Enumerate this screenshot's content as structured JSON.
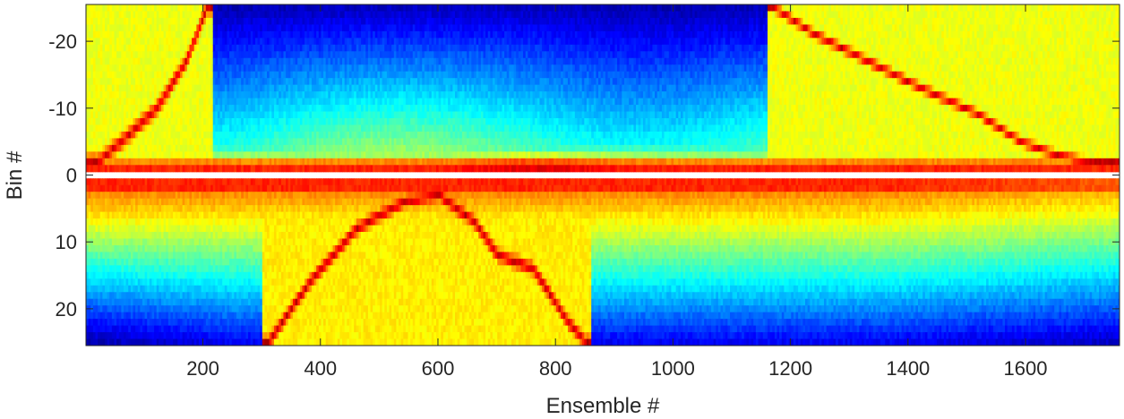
{
  "chart_data": {
    "type": "heatmap",
    "title": "",
    "xlabel": "Ensemble #",
    "ylabel": "Bin #",
    "xlim": [
      1,
      1760
    ],
    "ylim": [
      -25.5,
      25.5
    ],
    "y_direction": "reversed",
    "colormap": "jet",
    "grid": false,
    "x_ticks": [
      {
        "value": 200,
        "label": "200"
      },
      {
        "value": 400,
        "label": "400"
      },
      {
        "value": 600,
        "label": "600"
      },
      {
        "value": 800,
        "label": "800"
      },
      {
        "value": 1000,
        "label": "1000"
      },
      {
        "value": 1200,
        "label": "1200"
      },
      {
        "value": 1400,
        "label": "1400"
      },
      {
        "value": 1600,
        "label": "1600"
      }
    ],
    "y_ticks": [
      {
        "value": -20,
        "label": "-20"
      },
      {
        "value": -10,
        "label": "-10"
      },
      {
        "value": 0,
        "label": "0"
      },
      {
        "value": 10,
        "label": "10"
      },
      {
        "value": 20,
        "label": "20"
      }
    ],
    "blank_row_bin": 0,
    "features": {
      "upper_left_ridge": [
        [
          20,
          -2
        ],
        [
          60,
          -5
        ],
        [
          120,
          -10
        ],
        [
          170,
          -17
        ],
        [
          205,
          -25
        ]
      ],
      "upper_right_ridge": [
        [
          1170,
          -25
        ],
        [
          1240,
          -21
        ],
        [
          1330,
          -17
        ],
        [
          1420,
          -13
        ],
        [
          1520,
          -9
        ],
        [
          1590,
          -5
        ],
        [
          1650,
          -3
        ],
        [
          1700,
          -2
        ],
        [
          1760,
          -2
        ]
      ],
      "lower_ridge": [
        [
          310,
          25
        ],
        [
          380,
          16
        ],
        [
          460,
          8
        ],
        [
          540,
          4
        ],
        [
          600,
          3
        ],
        [
          660,
          7
        ],
        [
          700,
          12
        ],
        [
          760,
          14
        ],
        [
          820,
          22
        ],
        [
          850,
          25
        ]
      ]
    }
  }
}
